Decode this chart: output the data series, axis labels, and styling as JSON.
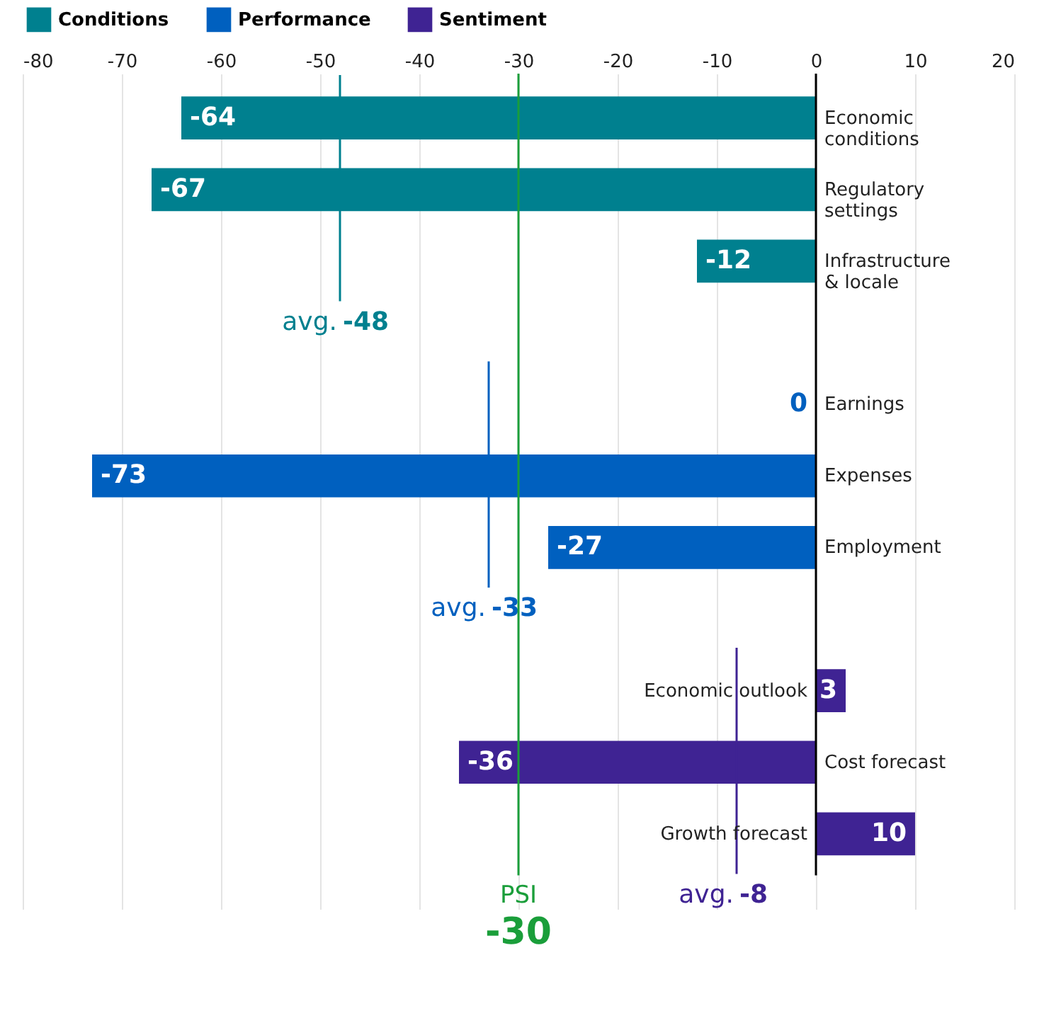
{
  "chart_data": {
    "type": "bar",
    "orientation": "horizontal",
    "categories": [
      "Economic conditions",
      "Regulatory settings",
      "Infrastructure & locale",
      "Earnings",
      "Expenses",
      "Employment",
      "Economic outlook",
      "Cost forecast",
      "Growth forecast"
    ],
    "series": [
      {
        "name": "Conditions",
        "color": "#00808f",
        "values": [
          -64,
          -67,
          -12,
          null,
          null,
          null,
          null,
          null,
          null
        ]
      },
      {
        "name": "Performance",
        "color": "#0060bf",
        "values": [
          null,
          null,
          null,
          0,
          -73,
          -27,
          null,
          null,
          null
        ]
      },
      {
        "name": "Sentiment",
        "color": "#3f2393",
        "values": [
          null,
          null,
          null,
          null,
          null,
          null,
          3,
          -36,
          10
        ]
      }
    ],
    "xlim": [
      -80,
      20
    ],
    "xticks": [
      -80,
      -70,
      -60,
      -50,
      -40,
      -30,
      -20,
      -10,
      0,
      10,
      20
    ],
    "ref_lines": [
      {
        "axis": "x",
        "value": -48,
        "label": "avg. -48",
        "color": "#00808f"
      },
      {
        "axis": "x",
        "value": -33,
        "label": "avg. -33",
        "color": "#0060bf"
      },
      {
        "axis": "x",
        "value": -8,
        "label": "avg. -8",
        "color": "#3f2393"
      },
      {
        "axis": "x",
        "value": -30,
        "label": "PSI -30",
        "color": "#1a9e3a"
      }
    ],
    "data_labels": true,
    "grid": "x",
    "legend": "top"
  }
}
